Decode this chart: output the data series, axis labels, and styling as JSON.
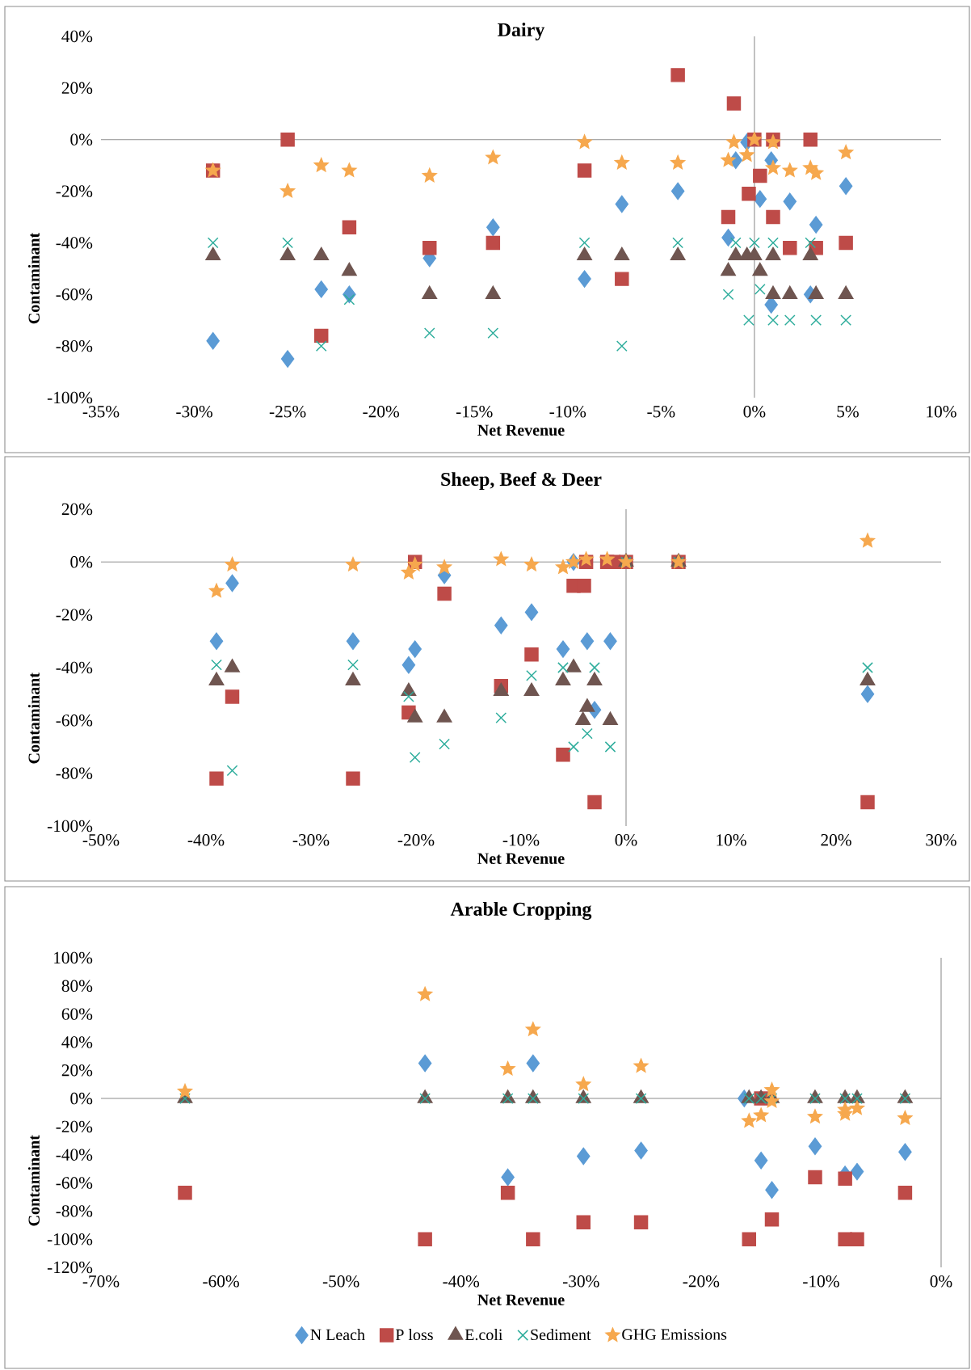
{
  "chart_data": [
    {
      "type": "scatter",
      "title": "Dairy",
      "xlabel": "Net Revenue",
      "ylabel": "Contaminant",
      "xlim": [
        -35,
        10
      ],
      "ylim": [
        -100,
        40
      ],
      "xticks": [
        {
          "value": -35,
          "label": "-35%"
        },
        {
          "value": -30,
          "label": "-30%"
        },
        {
          "value": -25,
          "label": "-25%"
        },
        {
          "value": -20,
          "label": "-20%"
        },
        {
          "value": -15,
          "label": "-15%"
        },
        {
          "value": -10,
          "label": "-10%"
        },
        {
          "value": -5,
          "label": "-5%"
        },
        {
          "value": 0,
          "label": "0%"
        },
        {
          "value": 5,
          "label": "5%"
        },
        {
          "value": 10,
          "label": "10%"
        }
      ],
      "yticks": [
        {
          "value": -100,
          "label": "-100%"
        },
        {
          "value": -80,
          "label": "-80%"
        },
        {
          "value": -60,
          "label": "-60%"
        },
        {
          "value": -40,
          "label": "-40%"
        },
        {
          "value": -20,
          "label": "-20%"
        },
        {
          "value": 0,
          "label": "0%"
        },
        {
          "value": 20,
          "label": "20%"
        },
        {
          "value": 40,
          "label": "40%"
        }
      ],
      "series": [
        {
          "color": "#5B9BD5",
          "marker": "diamond",
          "x": [
            -29,
            -25,
            -23.2,
            -21.7,
            -17.4,
            -14,
            -9.1,
            -7.1,
            -4.1,
            -1.4,
            -1,
            -0.4,
            0.3,
            0.9,
            0.9,
            1.9,
            3,
            3.3,
            4.9
          ],
          "values": [
            -78,
            -85,
            -58,
            -60,
            -46,
            -34,
            -54,
            -25,
            -20,
            -38,
            -8,
            -1,
            -23,
            -8,
            -64,
            -24,
            -60,
            -33,
            -18
          ]
        },
        {
          "color": "#BE4B48",
          "marker": "square",
          "x": [
            -29,
            -25,
            -23.2,
            -21.7,
            -17.4,
            -14,
            -9.1,
            -7.1,
            -4.1,
            -1.4,
            -1.1,
            -0.3,
            0,
            0.3,
            1,
            1,
            1.9,
            3,
            3.3,
            4.9
          ],
          "values": [
            -12,
            0,
            -76,
            -34,
            -42,
            -40,
            -12,
            -54,
            25,
            -30,
            14,
            -21,
            0,
            -14,
            0,
            -30,
            -42,
            0,
            -42,
            -40
          ]
        },
        {
          "color": "#6F5550",
          "marker": "triangle",
          "x": [
            -29,
            -25,
            -23.2,
            -21.7,
            -17.4,
            -14,
            -9.1,
            -7.1,
            -4.1,
            -1.4,
            -1,
            -0.4,
            0,
            0.3,
            1,
            1,
            1.9,
            3,
            3.3,
            4.9
          ],
          "values": [
            -45,
            -45,
            -45,
            -51,
            -60,
            -60,
            -45,
            -45,
            -45,
            -51,
            -45,
            -45,
            -45,
            -51,
            -45,
            -60,
            -60,
            -45,
            -60,
            -60
          ]
        },
        {
          "color": "#2EAD9C",
          "marker": "cross",
          "x": [
            -29,
            -25,
            -23.2,
            -21.7,
            -17.4,
            -14,
            -9.1,
            -7.1,
            -4.1,
            -1.4,
            -1,
            -0.3,
            0,
            0.3,
            1,
            1,
            1.9,
            3,
            3.3,
            4.9
          ],
          "values": [
            -40,
            -40,
            -80,
            -62,
            -75,
            -75,
            -40,
            -80,
            -40,
            -60,
            -40,
            -70,
            -40,
            -58,
            -40,
            -70,
            -70,
            -40,
            -70,
            -70
          ]
        },
        {
          "color": "#F6A84E",
          "marker": "star",
          "x": [
            -29,
            -25,
            -23.2,
            -21.7,
            -17.4,
            -14,
            -9.1,
            -7.1,
            -4.1,
            -1.4,
            -1.1,
            -0.4,
            0,
            1,
            1,
            1.9,
            3,
            3.3,
            4.9
          ],
          "values": [
            -12,
            -20,
            -10,
            -12,
            -14,
            -7,
            -1,
            -9,
            -9,
            -8,
            -1,
            -6,
            0,
            -1,
            -11,
            -12,
            -11,
            -13,
            -5
          ]
        }
      ]
    },
    {
      "type": "scatter",
      "title": "Sheep, Beef & Deer",
      "xlabel": "Net Revenue",
      "ylabel": "Contaminant",
      "xlim": [
        -50,
        30
      ],
      "ylim": [
        -100,
        20
      ],
      "xticks": [
        {
          "value": -50,
          "label": "-50%"
        },
        {
          "value": -40,
          "label": "-40%"
        },
        {
          "value": -30,
          "label": "-30%"
        },
        {
          "value": -20,
          "label": "-20%"
        },
        {
          "value": -10,
          "label": "-10%"
        },
        {
          "value": 0,
          "label": "0%"
        },
        {
          "value": 10,
          "label": "10%"
        },
        {
          "value": 20,
          "label": "20%"
        },
        {
          "value": 30,
          "label": "30%"
        }
      ],
      "yticks": [
        {
          "value": -100,
          "label": "-100%"
        },
        {
          "value": -80,
          "label": "-80%"
        },
        {
          "value": -60,
          "label": "-60%"
        },
        {
          "value": -40,
          "label": "-40%"
        },
        {
          "value": -20,
          "label": "-20%"
        },
        {
          "value": 0,
          "label": "0%"
        },
        {
          "value": 20,
          "label": "20%"
        }
      ],
      "series": [
        {
          "color": "#5B9BD5",
          "marker": "diamond",
          "x": [
            -39,
            -37.5,
            -26,
            -20.7,
            -20.1,
            -17.3,
            -11.9,
            -9,
            -6,
            -5,
            -3.7,
            -3,
            -1.5,
            23
          ],
          "values": [
            -30,
            -8,
            -30,
            -39,
            -33,
            -5,
            -24,
            -19,
            -33,
            0,
            -30,
            -56,
            -30,
            -50
          ]
        },
        {
          "color": "#BE4B48",
          "marker": "square",
          "x": [
            -39,
            -37.5,
            -26,
            -20.7,
            -20.1,
            -17.3,
            -11.9,
            -9,
            -6,
            -5,
            -4,
            -3.8,
            -3,
            -1.8,
            -1.2,
            0,
            5,
            23
          ],
          "values": [
            -82,
            -51,
            -82,
            -57,
            0,
            -12,
            -47,
            -35,
            -73,
            -9,
            -9,
            0,
            -91,
            0,
            0,
            0,
            0,
            -91
          ]
        },
        {
          "color": "#6F5550",
          "marker": "triangle",
          "x": [
            -39,
            -37.5,
            -26,
            -20.7,
            -20.1,
            -17.3,
            -11.9,
            -9,
            -6,
            -5,
            -4.1,
            -3.7,
            -3,
            -1.5,
            0,
            5,
            23
          ],
          "values": [
            -45,
            -40,
            -45,
            -49,
            -59,
            -59,
            -49,
            -49,
            -45,
            -40,
            -60,
            -55,
            -45,
            -60,
            0,
            0,
            -45
          ]
        },
        {
          "color": "#2EAD9C",
          "marker": "cross",
          "x": [
            -39,
            -37.5,
            -26,
            -20.7,
            -20.1,
            -17.3,
            -11.9,
            -9,
            -6,
            -5,
            -3.7,
            -3,
            -1.5,
            0,
            5,
            23
          ],
          "values": [
            -39,
            -79,
            -39,
            -51,
            -74,
            -69,
            -59,
            -43,
            -40,
            -70,
            -65,
            -40,
            -70,
            0,
            0,
            -40
          ]
        },
        {
          "color": "#F6A84E",
          "marker": "star",
          "x": [
            -39,
            -37.5,
            -26,
            -20.7,
            -20.1,
            -17.3,
            -11.9,
            -9,
            -6,
            -5,
            -3.8,
            -1.8,
            0,
            5,
            23
          ],
          "values": [
            -11,
            -1,
            -1,
            -4,
            -1,
            -2,
            1,
            -1,
            -2,
            0,
            1,
            1,
            0,
            0,
            8
          ]
        }
      ]
    },
    {
      "type": "scatter",
      "title": "Arable Cropping",
      "xlabel": "Net Revenue",
      "ylabel": "Contaminant",
      "legend": "bottom",
      "xlim": [
        -70,
        0
      ],
      "ylim": [
        -120,
        100
      ],
      "xticks": [
        {
          "value": -70,
          "label": "-70%"
        },
        {
          "value": -60,
          "label": "-60%"
        },
        {
          "value": -50,
          "label": "-50%"
        },
        {
          "value": -40,
          "label": "-40%"
        },
        {
          "value": -30,
          "label": "-30%"
        },
        {
          "value": -20,
          "label": "-20%"
        },
        {
          "value": -10,
          "label": "-10%"
        },
        {
          "value": 0,
          "label": "0%"
        }
      ],
      "yticks": [
        {
          "value": -120,
          "label": "-120%"
        },
        {
          "value": -100,
          "label": "-100%"
        },
        {
          "value": -80,
          "label": "-80%"
        },
        {
          "value": -60,
          "label": "-60%"
        },
        {
          "value": -40,
          "label": "-40%"
        },
        {
          "value": -20,
          "label": "-20%"
        },
        {
          "value": 0,
          "label": "0%"
        },
        {
          "value": 20,
          "label": "20%"
        },
        {
          "value": 40,
          "label": "40%"
        },
        {
          "value": 60,
          "label": "60%"
        },
        {
          "value": 80,
          "label": "80%"
        },
        {
          "value": 100,
          "label": "100%"
        }
      ],
      "series": [
        {
          "name": "N Leach",
          "color": "#5B9BD5",
          "marker": "diamond",
          "x": [
            -43,
            -36.1,
            -34,
            -29.8,
            -25,
            -16.4,
            -15,
            -14.1,
            -10.5,
            -8,
            -7,
            -3
          ],
          "values": [
            25,
            -56,
            25,
            -41,
            -37,
            0,
            -44,
            -65,
            -34,
            -54,
            -52,
            -38
          ]
        },
        {
          "name": "P loss",
          "color": "#BE4B48",
          "marker": "square",
          "x": [
            -63,
            -43,
            -36.1,
            -34,
            -29.8,
            -25,
            -16,
            -15,
            -14.1,
            -10.5,
            -8,
            -8,
            -7,
            -3
          ],
          "values": [
            -67,
            -100,
            -67,
            -100,
            -88,
            -88,
            -100,
            0,
            -86,
            -56,
            -57,
            -100,
            -100,
            -67
          ]
        },
        {
          "name": "E.coli",
          "color": "#6F5550",
          "marker": "triangle",
          "x": [
            -63,
            -43,
            -36.1,
            -34,
            -29.8,
            -25,
            -16,
            -15,
            -14.1,
            -10.5,
            -8,
            -7,
            -3
          ],
          "values": [
            0,
            0,
            0,
            0,
            0,
            0,
            0,
            0,
            0,
            0,
            0,
            0,
            0
          ]
        },
        {
          "name": "Sediment",
          "color": "#2EAD9C",
          "marker": "cross",
          "x": [
            -63,
            -43,
            -36.1,
            -34,
            -29.8,
            -25,
            -16,
            -15,
            -14.1,
            -10.5,
            -8,
            -7,
            -3
          ],
          "values": [
            0,
            0,
            0,
            0,
            0,
            0,
            0,
            0,
            0,
            0,
            0,
            0,
            0
          ]
        },
        {
          "name": "GHG Emissions",
          "color": "#F6A84E",
          "marker": "star",
          "x": [
            -63,
            -43,
            -36.1,
            -34,
            -29.8,
            -25,
            -16,
            -15,
            -14.1,
            -14.1,
            -10.5,
            -8,
            -8,
            -7,
            -3
          ],
          "values": [
            5,
            74,
            21,
            49,
            10,
            23,
            -16,
            -12,
            6,
            -2,
            -13,
            -11,
            -8,
            -7,
            -14
          ]
        }
      ]
    }
  ]
}
